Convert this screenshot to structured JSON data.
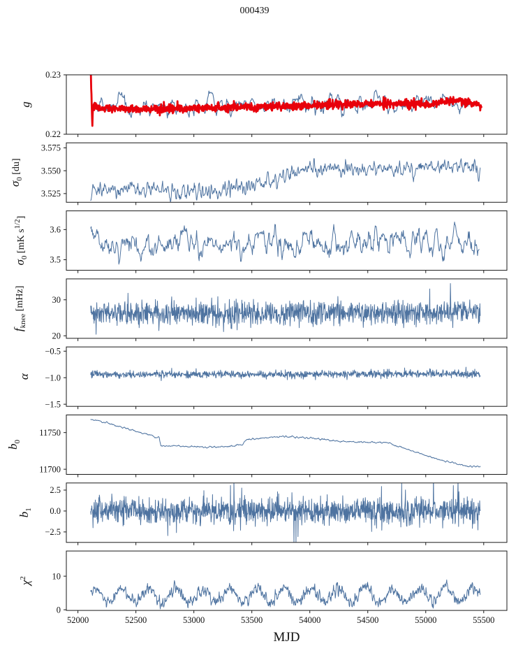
{
  "title": "000439",
  "colors": {
    "line_blue": "#4e73a0",
    "line_red": "#e8000b",
    "spine": "#1a1a1a",
    "text": "#111111",
    "background": "#ffffff"
  },
  "x_axis": {
    "label": "MJD",
    "lim": [
      51900,
      55700
    ],
    "ticks": [
      52000,
      52500,
      53000,
      53500,
      54000,
      54500,
      55000,
      55500
    ],
    "tick_labels": [
      "52000",
      "52500",
      "53000",
      "53500",
      "54000",
      "54500",
      "55000",
      "55500"
    ]
  },
  "chart_data": [
    {
      "name": "gain",
      "type": "line",
      "ylabel": "g",
      "ylabel_parts": [
        {
          "t": "g",
          "style": "i"
        }
      ],
      "ylim": [
        0.22,
        0.23
      ],
      "yticks": [
        0.22,
        0.23
      ],
      "ytick_labels": [
        "0.22",
        "0.23"
      ],
      "series": [
        {
          "name": "gain-raw",
          "color": "#4e73a0",
          "linewidth": 1.1,
          "n_points": 560,
          "x_range": [
            52125,
            55410
          ],
          "noise_sigma": 0.00085,
          "smooth": 2,
          "spike_prob": 0.05,
          "spike_scale": 1.7,
          "seed": 7,
          "trend": [
            [
              52125,
              0.2246
            ],
            [
              52300,
              0.2247
            ],
            [
              52700,
              0.2246
            ],
            [
              53200,
              0.2247
            ],
            [
              53600,
              0.2249
            ],
            [
              54000,
              0.2252
            ],
            [
              54400,
              0.2252
            ],
            [
              54800,
              0.2251
            ],
            [
              55100,
              0.2252
            ],
            [
              55300,
              0.2257
            ],
            [
              55410,
              0.2252
            ]
          ]
        },
        {
          "name": "gain-smoothed",
          "color": "#e8000b",
          "linewidth": 2.8,
          "n_points": 1350,
          "x_range": [
            52112,
            55480
          ],
          "noise_sigma": 0.00033,
          "smooth": 0,
          "seed": 13,
          "trend": [
            [
              52112,
              0.2297
            ],
            [
              52117,
              0.227
            ],
            [
              52121,
              0.2235
            ],
            [
              52124,
              0.2207
            ],
            [
              52127,
              0.223
            ],
            [
              52132,
              0.2248
            ],
            [
              52170,
              0.2244
            ],
            [
              52350,
              0.2243
            ],
            [
              52700,
              0.2243
            ],
            [
              53100,
              0.2244
            ],
            [
              53450,
              0.2245
            ],
            [
              53800,
              0.2247
            ],
            [
              54200,
              0.225
            ],
            [
              54600,
              0.2252
            ],
            [
              54850,
              0.2251
            ],
            [
              55050,
              0.225
            ],
            [
              55250,
              0.2257
            ],
            [
              55360,
              0.2253
            ],
            [
              55480,
              0.2248
            ]
          ]
        }
      ]
    },
    {
      "name": "sigma0-du",
      "type": "line",
      "ylabel": "σ0 [du]",
      "ylabel_parts": [
        {
          "t": "σ",
          "style": "i"
        },
        {
          "t": "0",
          "style": "sub"
        },
        {
          "t": " [du]"
        }
      ],
      "ylim": [
        3.5155,
        3.5805
      ],
      "yticks": [
        3.525,
        3.55,
        3.575
      ],
      "ytick_labels": [
        "3.525",
        "3.550",
        "3.575"
      ],
      "series": [
        {
          "name": "sigma0-du",
          "color": "#4e73a0",
          "linewidth": 1.0,
          "n_points": 900,
          "x_range": [
            52110,
            55470
          ],
          "noise_sigma": 0.0042,
          "smooth": 1,
          "seed": 21,
          "trend": [
            [
              52110,
              3.531
            ],
            [
              52250,
              3.529
            ],
            [
              52500,
              3.5295
            ],
            [
              52750,
              3.527
            ],
            [
              53000,
              3.527
            ],
            [
              53200,
              3.528
            ],
            [
              53400,
              3.531
            ],
            [
              53550,
              3.535
            ],
            [
              53700,
              3.542
            ],
            [
              53850,
              3.548
            ],
            [
              54000,
              3.55
            ],
            [
              54150,
              3.5525
            ],
            [
              54350,
              3.551
            ],
            [
              54500,
              3.5525
            ],
            [
              54700,
              3.55
            ],
            [
              54900,
              3.555
            ],
            [
              55050,
              3.5545
            ],
            [
              55200,
              3.552
            ],
            [
              55300,
              3.5555
            ],
            [
              55400,
              3.556
            ],
            [
              55470,
              3.549
            ]
          ]
        }
      ]
    },
    {
      "name": "sigma0-mK",
      "type": "line",
      "ylabel": "σ0 [mK s1/2]",
      "ylabel_parts": [
        {
          "t": "σ",
          "style": "i"
        },
        {
          "t": "0",
          "style": "sub"
        },
        {
          "t": " [mK s"
        },
        {
          "t": "1/2",
          "style": "sup"
        },
        {
          "t": "]"
        }
      ],
      "ylim": [
        3.465,
        3.662
      ],
      "yticks": [
        3.5,
        3.6
      ],
      "ytick_labels": [
        "3.5",
        "3.6"
      ],
      "series": [
        {
          "name": "sigma0-mK",
          "color": "#4e73a0",
          "linewidth": 1.0,
          "n_points": 760,
          "x_range": [
            52110,
            55460
          ],
          "noise_sigma": 0.024,
          "smooth": 2,
          "spike_prob": 0.03,
          "spike_scale": 1.6,
          "seed": 33,
          "trend": [
            [
              52110,
              3.555
            ],
            [
              52400,
              3.552
            ],
            [
              52800,
              3.556
            ],
            [
              53200,
              3.552
            ],
            [
              53600,
              3.556
            ],
            [
              54000,
              3.551
            ],
            [
              54400,
              3.555
            ],
            [
              54800,
              3.553
            ],
            [
              55200,
              3.556
            ],
            [
              55460,
              3.552
            ]
          ]
        }
      ]
    },
    {
      "name": "fknee",
      "type": "line",
      "ylabel": "fknee [mHz]",
      "ylabel_parts": [
        {
          "t": "f",
          "style": "i"
        },
        {
          "t": "knee",
          "style": "sub"
        },
        {
          "t": " [mHz]"
        }
      ],
      "ylim": [
        19.3,
        35.8
      ],
      "yticks": [
        20,
        30
      ],
      "ytick_labels": [
        "20",
        "30"
      ],
      "series": [
        {
          "name": "fknee",
          "color": "#4e73a0",
          "linewidth": 1.0,
          "n_points": 1150,
          "x_range": [
            52110,
            55470
          ],
          "noise_sigma": 1.65,
          "smooth": 0,
          "spike_prob": 0.05,
          "spike_scale": 1.7,
          "seed": 41,
          "trend": [
            [
              52110,
              26.3
            ],
            [
              53000,
              26.2
            ],
            [
              54000,
              26.4
            ],
            [
              55470,
              26.6
            ]
          ]
        }
      ]
    },
    {
      "name": "alpha",
      "type": "line",
      "ylabel": "α",
      "ylabel_parts": [
        {
          "t": "α",
          "style": "i"
        }
      ],
      "ylim": [
        -1.54,
        -0.42
      ],
      "yticks": [
        -1.5,
        -1.0,
        -0.5
      ],
      "ytick_labels": [
        "−1.5",
        "−1.0",
        "−0.5"
      ],
      "series": [
        {
          "name": "alpha",
          "color": "#4e73a0",
          "linewidth": 1.0,
          "n_points": 1150,
          "x_range": [
            52110,
            55470
          ],
          "noise_sigma": 0.034,
          "smooth": 0,
          "spike_prob": 0.04,
          "spike_scale": 2.2,
          "seed": 55,
          "trend": [
            [
              52110,
              -0.935
            ],
            [
              53000,
              -0.94
            ],
            [
              54000,
              -0.935
            ],
            [
              55470,
              -0.93
            ]
          ]
        }
      ]
    },
    {
      "name": "b0",
      "type": "line",
      "ylabel": "b0",
      "ylabel_parts": [
        {
          "t": "b",
          "style": "i"
        },
        {
          "t": "0",
          "style": "sub"
        }
      ],
      "ylim": [
        11693,
        11774
      ],
      "yticks": [
        11700,
        11750
      ],
      "ytick_labels": [
        "11700",
        "11750"
      ],
      "series": [
        {
          "name": "b0-baseline",
          "color": "#4e73a0",
          "linewidth": 1.0,
          "n_points": 1150,
          "x_range": [
            52110,
            55470
          ],
          "noise_sigma": 0.55,
          "smooth": 2,
          "seed": 63,
          "trend": [
            [
              52110,
              11768
            ],
            [
              52200,
              11765
            ],
            [
              52350,
              11759
            ],
            [
              52500,
              11752
            ],
            [
              52650,
              11745
            ],
            [
              52700,
              11743
            ],
            [
              52715,
              11732
            ],
            [
              52900,
              11731
            ],
            [
              53100,
              11730
            ],
            [
              53250,
              11730.5
            ],
            [
              53420,
              11733
            ],
            [
              53450,
              11740
            ],
            [
              53550,
              11742
            ],
            [
              53700,
              11744
            ],
            [
              53800,
              11744.5
            ],
            [
              53950,
              11743.5
            ],
            [
              54100,
              11741
            ],
            [
              54250,
              11738.5
            ],
            [
              54400,
              11737
            ],
            [
              54550,
              11736.5
            ],
            [
              54680,
              11736
            ],
            [
              54720,
              11733
            ],
            [
              54850,
              11727
            ],
            [
              55000,
              11719
            ],
            [
              55150,
              11712
            ],
            [
              55300,
              11706
            ],
            [
              55400,
              11703.5
            ],
            [
              55470,
              11704
            ]
          ]
        }
      ]
    },
    {
      "name": "b1",
      "type": "line",
      "ylabel": "b1",
      "ylabel_parts": [
        {
          "t": "b",
          "style": "i"
        },
        {
          "t": "1",
          "style": "sub"
        }
      ],
      "ylim": [
        -3.75,
        3.35
      ],
      "yticks": [
        -2.5,
        0.0,
        2.5
      ],
      "ytick_labels": [
        "−2.5",
        "0.0",
        "2.5"
      ],
      "series": [
        {
          "name": "b1-slope",
          "color": "#4e73a0",
          "linewidth": 1.0,
          "n_points": 1350,
          "x_range": [
            52110,
            55470
          ],
          "noise_sigma": 0.75,
          "smooth": 0,
          "spike_prob": 0.035,
          "spike_scale": 2.6,
          "seed": 77,
          "trend": [
            [
              52110,
              0
            ],
            [
              55470,
              0
            ]
          ]
        }
      ]
    },
    {
      "name": "chi2",
      "type": "line",
      "ylabel": "χ2",
      "ylabel_parts": [
        {
          "t": "χ",
          "style": "i"
        },
        {
          "t": "2",
          "style": "sup"
        }
      ],
      "ylim": [
        -0.2,
        17.5
      ],
      "yticks": [
        0,
        10
      ],
      "ytick_labels": [
        "0",
        "10"
      ],
      "series": [
        {
          "name": "chi2",
          "color": "#4e73a0",
          "linewidth": 1.0,
          "n_points": 1350,
          "x_range": [
            52110,
            55470
          ],
          "noise_sigma": 0.85,
          "smooth": 1,
          "osc": {
            "amp": 2.1,
            "period": 233,
            "phase": 0.6
          },
          "clip_min": 0.25,
          "seed": 91,
          "trend": [
            [
              52110,
              4.25
            ],
            [
              55470,
              4.4
            ]
          ]
        }
      ]
    }
  ]
}
